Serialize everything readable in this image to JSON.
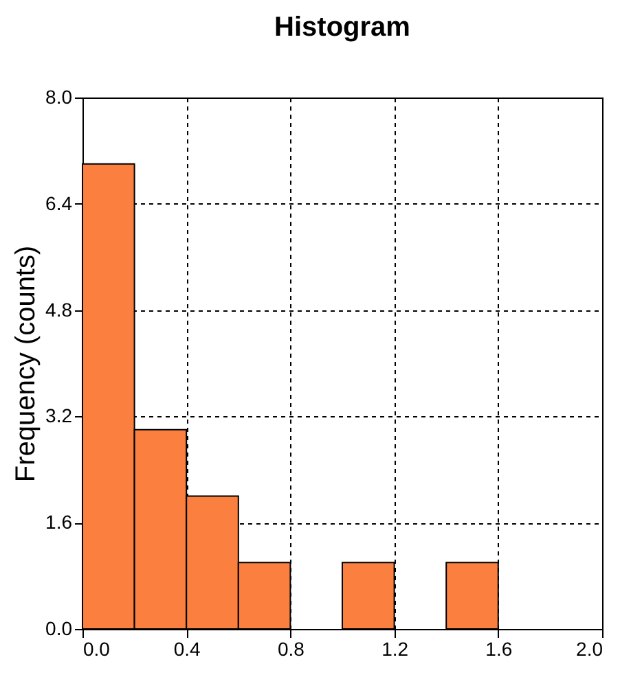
{
  "chart_data": {
    "type": "histogram",
    "title": "Histogram",
    "ylabel": "Frequency (counts)",
    "bins": [
      0,
      0.2,
      0.4,
      0.6,
      0.8,
      1.0,
      1.2,
      1.4,
      1.6
    ],
    "values": [
      7,
      3,
      2,
      1,
      0,
      1,
      0,
      1
    ],
    "color": "#fb7f3f",
    "xlim": [
      0,
      2
    ],
    "xticks": [
      {
        "value": 0,
        "label": "0.0"
      },
      0.4,
      0.8,
      1.2,
      1.6,
      {
        "value": 2,
        "label": "2.0"
      }
    ],
    "ylim": [
      0,
      8
    ],
    "yticks": [
      {
        "value": 0,
        "label": "0.0"
      },
      1.6,
      3.2,
      4.8,
      6.4,
      {
        "value": 8,
        "label": "8.0"
      }
    ],
    "grid": true,
    "line_style": "dashed"
  }
}
